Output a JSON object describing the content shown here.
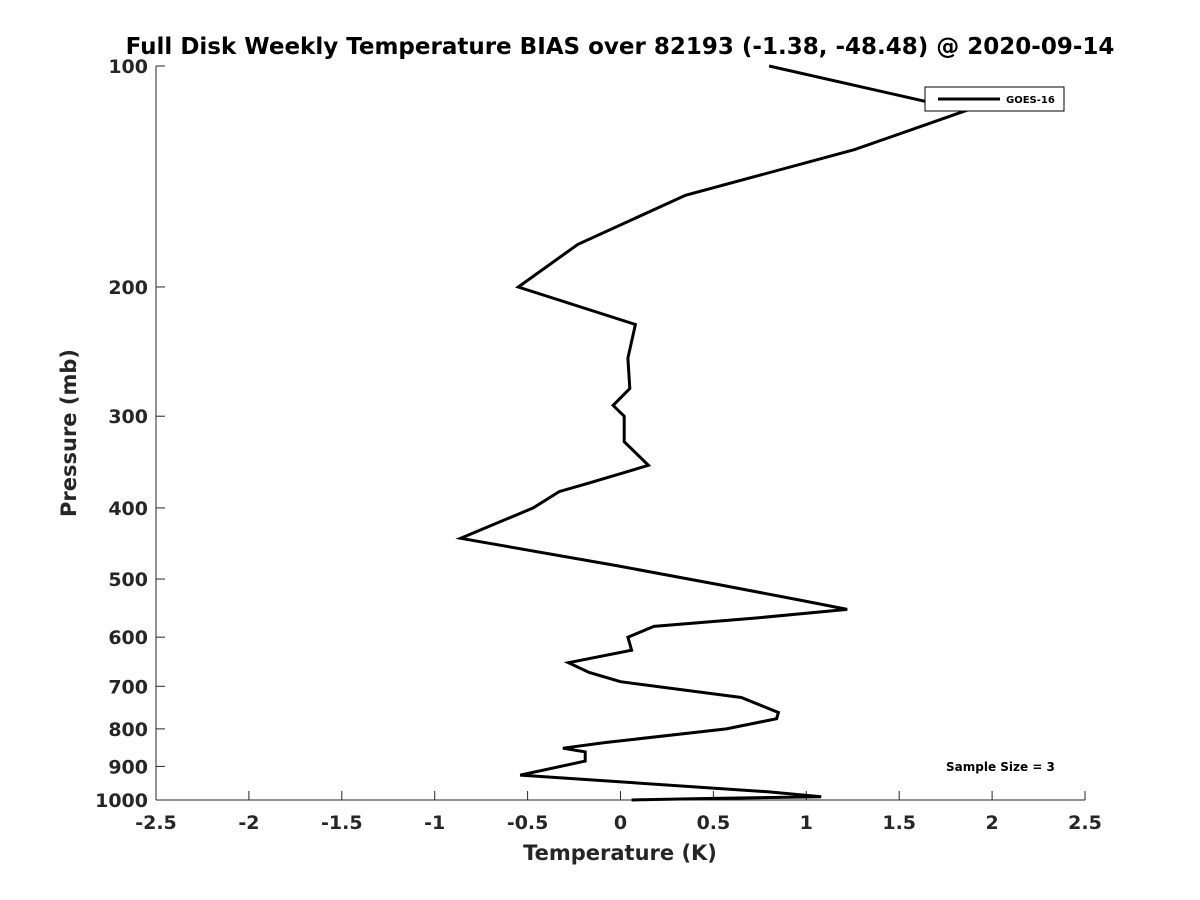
{
  "chart_data": {
    "type": "line",
    "title": "Full Disk Weekly Temperature BIAS over 82193 (-1.38, -48.48) @ 2020-09-14",
    "xlabel": "Temperature (K)",
    "ylabel": "Pressure (mb)",
    "xlim": [
      -2.5,
      2.5
    ],
    "ylim": [
      1000,
      100
    ],
    "yscale": "log",
    "y_reversed": true,
    "grid": false,
    "legend_position": "top-right",
    "x_ticks": [
      "-2.5",
      "-2",
      "-1.5",
      "-1",
      "-0.5",
      "0",
      "0.5",
      "1",
      "1.5",
      "2",
      "2.5"
    ],
    "y_ticks": [
      "100",
      "200",
      "300",
      "400",
      "500",
      "600",
      "700",
      "800",
      "900",
      "1000"
    ],
    "annotation": "Sample Size = 3",
    "series": [
      {
        "name": "GOES-16",
        "color": "#000000",
        "points": [
          [
            0.8,
            100
          ],
          [
            1.86,
            115
          ],
          [
            1.26,
            130
          ],
          [
            0.35,
            150
          ],
          [
            -0.23,
            175
          ],
          [
            -0.55,
            200
          ],
          [
            0.08,
            225
          ],
          [
            0.04,
            250
          ],
          [
            0.05,
            275
          ],
          [
            -0.04,
            290
          ],
          [
            0.02,
            300
          ],
          [
            0.02,
            325
          ],
          [
            0.15,
            350
          ],
          [
            -0.17,
            370
          ],
          [
            -0.33,
            380
          ],
          [
            -0.47,
            400
          ],
          [
            -0.86,
            440
          ],
          [
            -0.01,
            480
          ],
          [
            0.55,
            510
          ],
          [
            0.98,
            535
          ],
          [
            1.22,
            550
          ],
          [
            0.73,
            565
          ],
          [
            0.18,
            580
          ],
          [
            0.04,
            600
          ],
          [
            0.06,
            625
          ],
          [
            -0.28,
            650
          ],
          [
            -0.17,
            670
          ],
          [
            0.0,
            690
          ],
          [
            0.65,
            725
          ],
          [
            0.85,
            760
          ],
          [
            0.84,
            775
          ],
          [
            0.57,
            800
          ],
          [
            -0.08,
            835
          ],
          [
            -0.31,
            850
          ],
          [
            -0.19,
            860
          ],
          [
            -0.19,
            885
          ],
          [
            -0.54,
            925
          ],
          [
            0.8,
            975
          ],
          [
            1.08,
            990
          ],
          [
            0.5,
            995
          ],
          [
            0.06,
            1000
          ]
        ]
      }
    ]
  }
}
